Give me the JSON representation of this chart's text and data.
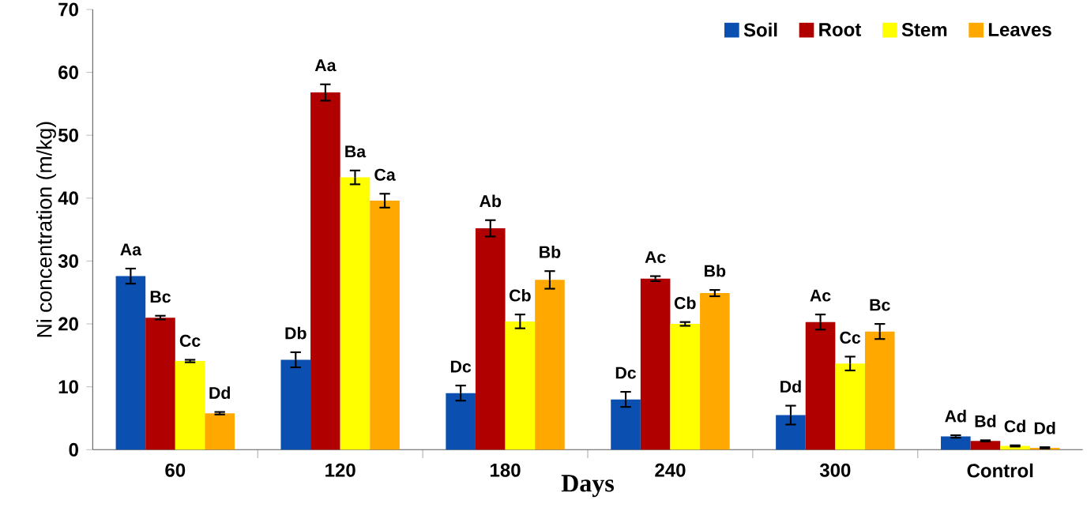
{
  "chart_data": {
    "type": "bar",
    "xlabel": "Days",
    "ylabel": "Ni concentration (m/kg)",
    "categories": [
      "60",
      "120",
      "180",
      "240",
      "300",
      "Control"
    ],
    "ylim": [
      0,
      70
    ],
    "yticks": [
      0,
      10,
      20,
      30,
      40,
      50,
      60,
      70
    ],
    "legend": "top right",
    "grid": false,
    "series": [
      {
        "name": "Soil",
        "color": "#0b50b0",
        "values": [
          27.6,
          14.3,
          9.0,
          8.0,
          5.5,
          2.1
        ],
        "errors": [
          1.2,
          1.2,
          1.2,
          1.2,
          1.5,
          0.2
        ],
        "value_labels": [
          "Aa",
          "Db",
          "Dc",
          "Dc",
          "Dd",
          "Ad"
        ]
      },
      {
        "name": "Root",
        "color": "#b00000",
        "values": [
          21.0,
          56.8,
          35.2,
          27.2,
          20.3,
          1.4
        ],
        "errors": [
          0.3,
          1.3,
          1.3,
          0.4,
          1.2,
          0.1
        ],
        "value_labels": [
          "Bc",
          "Aa",
          "Ab",
          "Ac",
          "Ac",
          "Bd"
        ]
      },
      {
        "name": "Stem",
        "color": "#ffff00",
        "values": [
          14.1,
          43.3,
          20.4,
          20.0,
          13.7,
          0.6
        ],
        "errors": [
          0.2,
          1.1,
          1.1,
          0.3,
          1.1,
          0.1
        ],
        "value_labels": [
          "Cc",
          "Ba",
          "Cb",
          "Cb",
          "Cc",
          "Cd"
        ]
      },
      {
        "name": "Leaves",
        "color": "#ffa800",
        "values": [
          5.8,
          39.6,
          27.0,
          24.9,
          18.8,
          0.3
        ],
        "errors": [
          0.2,
          1.1,
          1.4,
          0.5,
          1.2,
          0.1
        ],
        "value_labels": [
          "Dd",
          "Ca",
          "Bb",
          "Bb",
          "Bc",
          "Dd"
        ]
      }
    ]
  }
}
